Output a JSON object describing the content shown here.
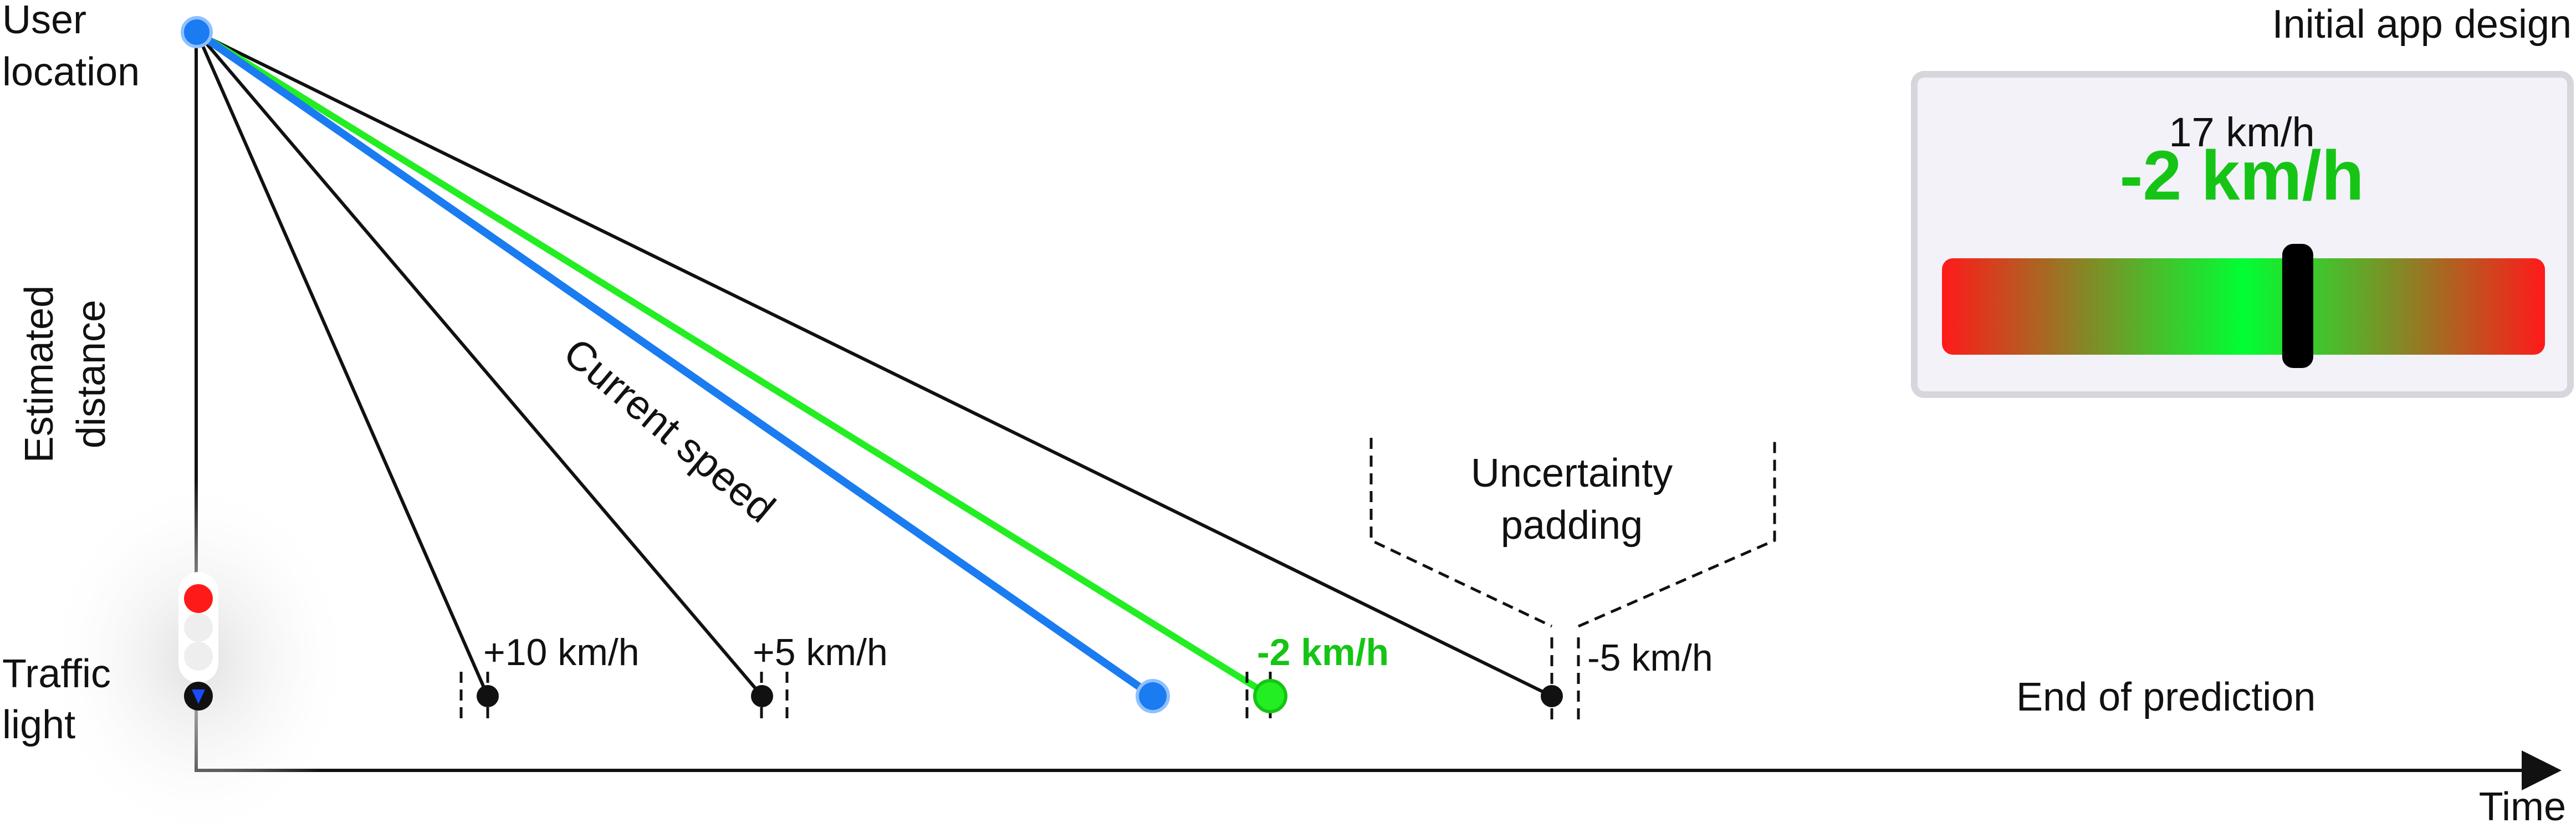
{
  "labels": {
    "user_location_line1": "User",
    "user_location_line2": "location",
    "y_axis_line1": "Estimated",
    "y_axis_line2": "distance",
    "traffic_light_line1": "Traffic",
    "traffic_light_line2": "light",
    "x_axis": "Time",
    "end_of_prediction": "End of prediction",
    "current_speed": "Current speed",
    "uncertainty_line1": "Uncertainty",
    "uncertainty_line2": "padding"
  },
  "speed_markers": [
    {
      "label": "+10 km/h",
      "highlight": false
    },
    {
      "label": "+5 km/h",
      "highlight": false
    },
    {
      "label": "-2 km/h",
      "highlight": true
    },
    {
      "label": "-5 km/h",
      "highlight": false
    }
  ],
  "app_design": {
    "title": "Initial app design",
    "current_speed": "17 km/h",
    "recommended_change": "-2 km/h",
    "gradient": [
      "#ff1a1a",
      "#00ff33",
      "#ff1a1a"
    ],
    "indicator_position": 0.59
  },
  "colors": {
    "red_phase": "#ff1a1a",
    "green_phase": "#00ff33",
    "current_speed_line": "#1a7cf0",
    "recommended_line": "#22ee22",
    "highlight_text": "#16c416",
    "axis": "#111111"
  }
}
